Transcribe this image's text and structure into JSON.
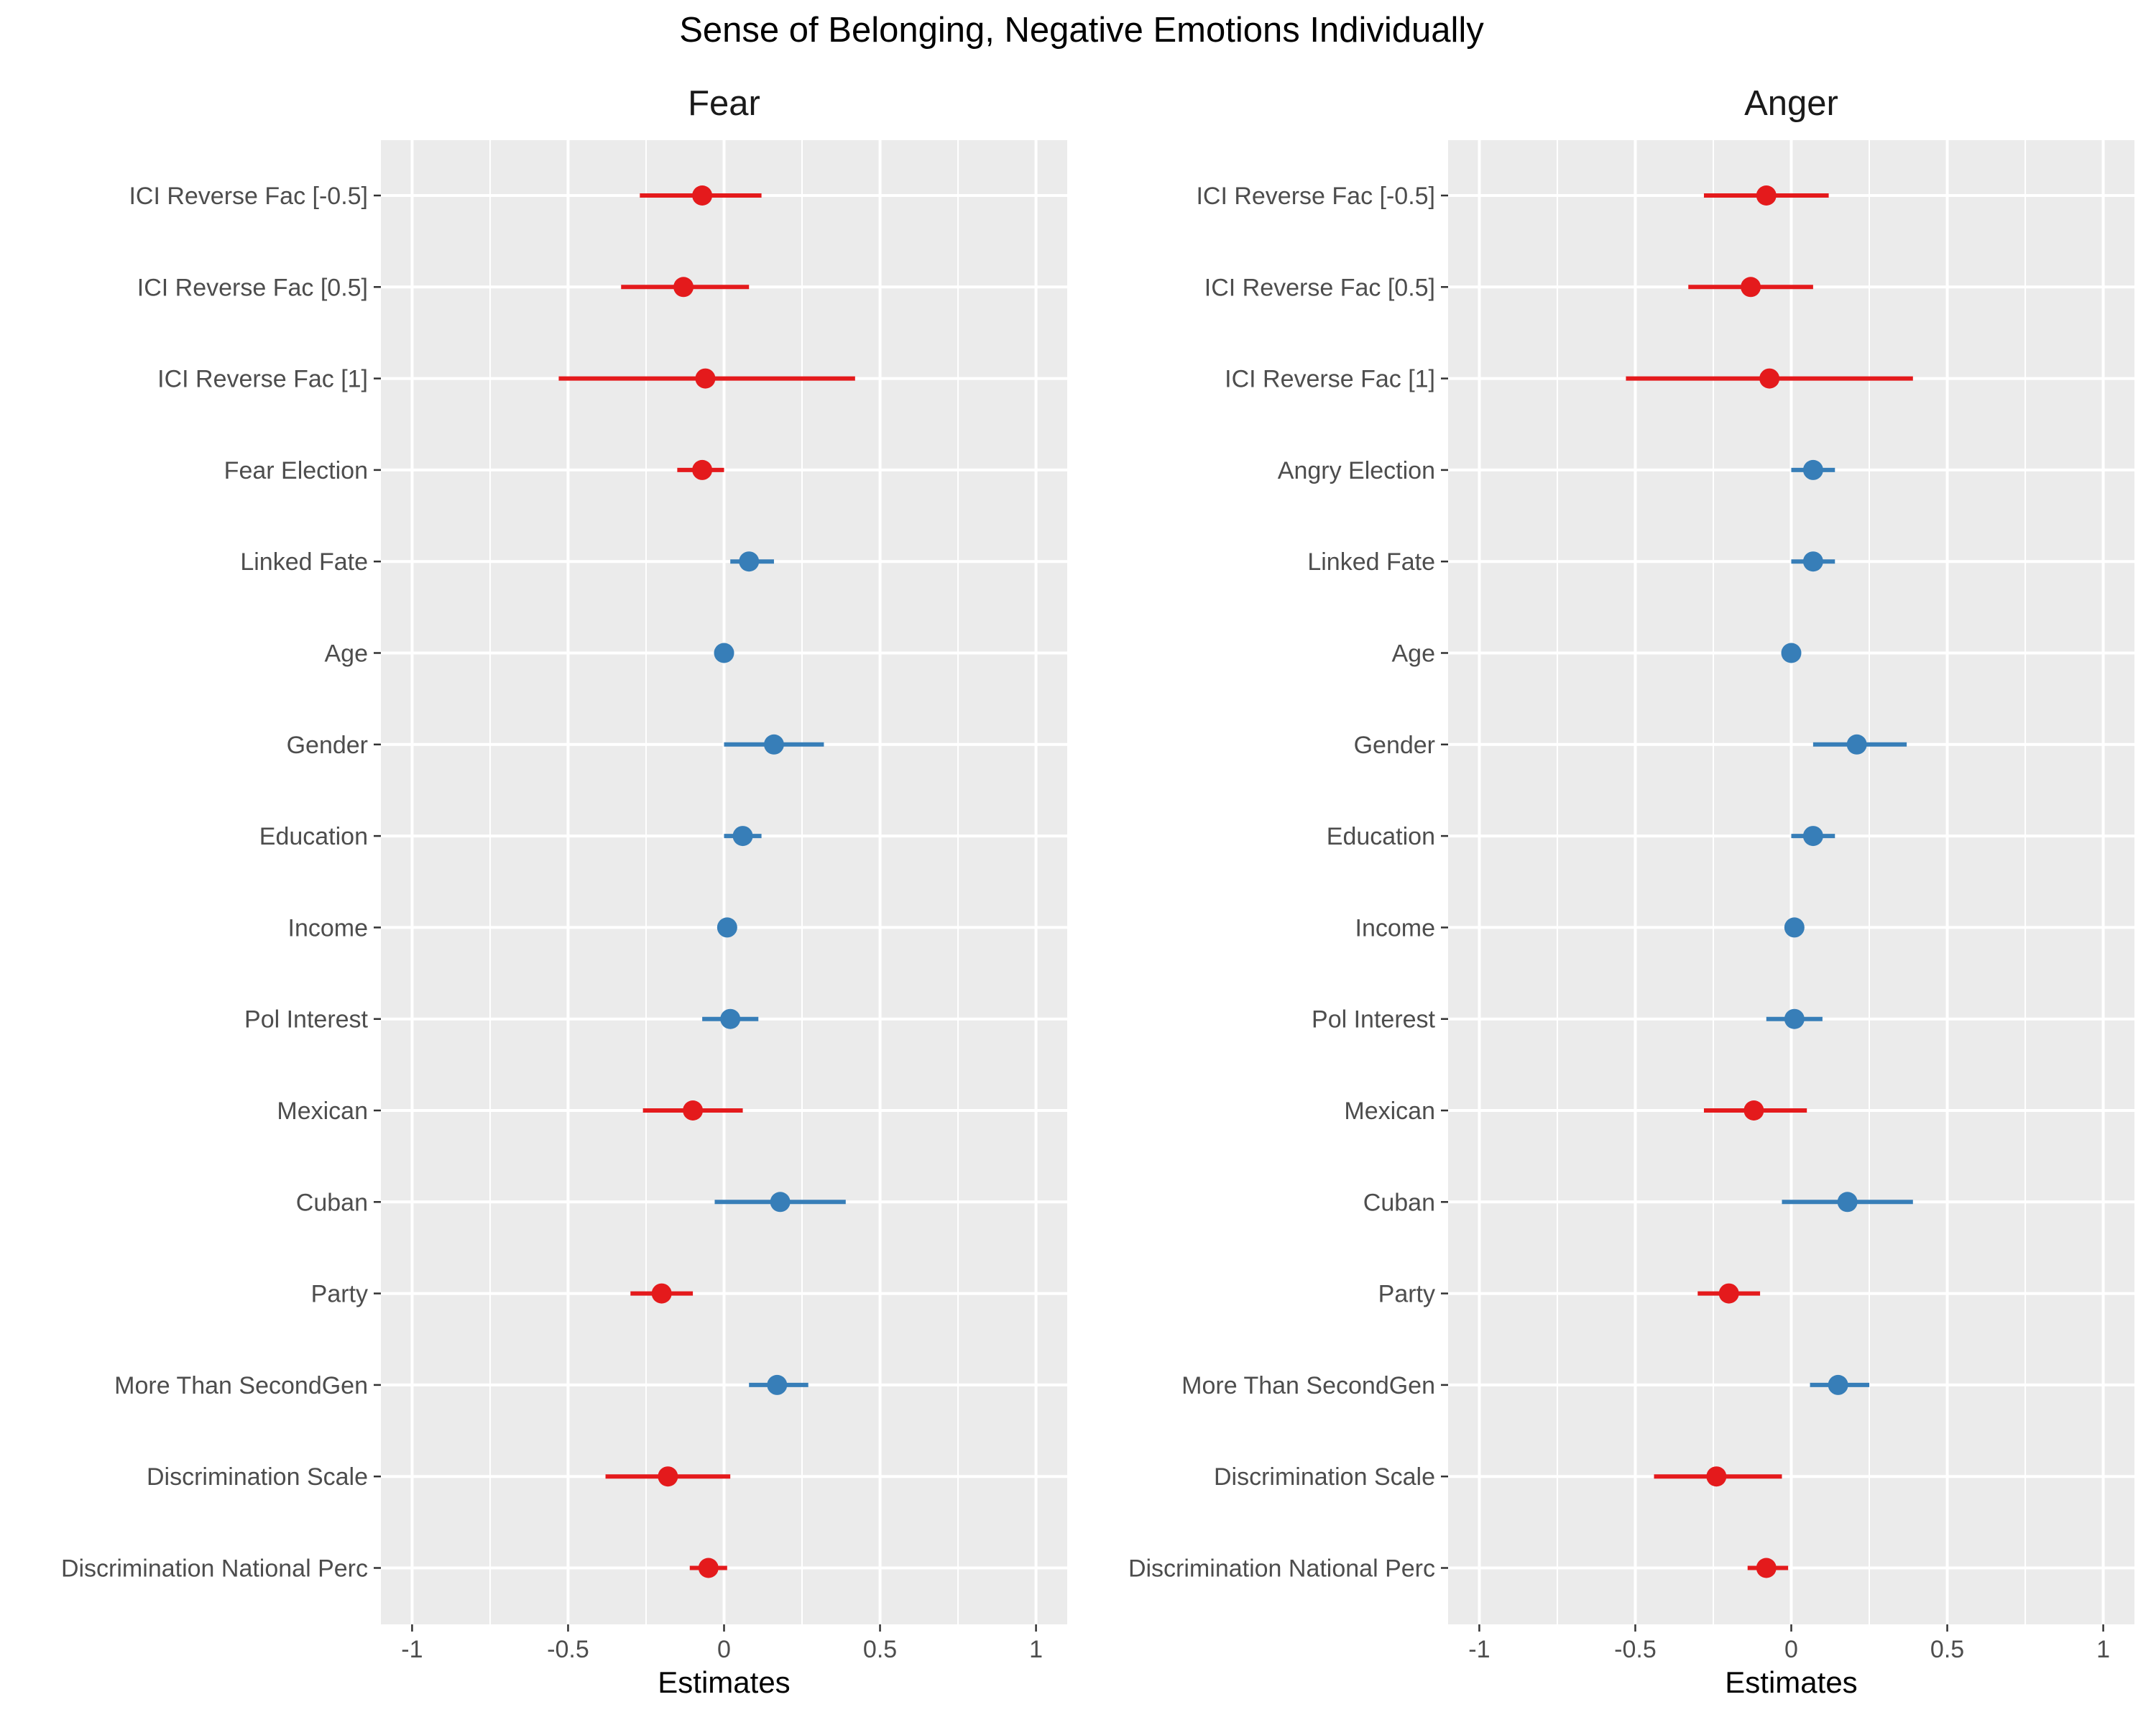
{
  "title": "Sense of Belonging, Negative Emotions Individually",
  "colors": {
    "negative": "#e41a1c",
    "positive": "#377eb8",
    "panel_bg": "#ebebeb",
    "grid": "#ffffff",
    "tick_text": "#4d4d4d"
  },
  "chart_data": [
    {
      "type": "forest",
      "title": "Fear",
      "xlabel": "Estimates",
      "xlim": [
        -1.1,
        1.1
      ],
      "xticks": [
        -1,
        -0.5,
        0,
        0.5,
        1
      ],
      "xtick_labels": [
        "-1",
        "-0.5",
        "0",
        "0.5",
        "1"
      ],
      "grid": true,
      "terms": [
        {
          "label": "ICI Reverse Fac [-0.5]",
          "estimate": -0.07,
          "low": -0.27,
          "high": 0.12,
          "sign": "negative"
        },
        {
          "label": "ICI Reverse Fac [0.5]",
          "estimate": -0.13,
          "low": -0.33,
          "high": 0.08,
          "sign": "negative"
        },
        {
          "label": "ICI Reverse Fac [1]",
          "estimate": -0.06,
          "low": -0.53,
          "high": 0.42,
          "sign": "negative"
        },
        {
          "label": "Fear Election",
          "estimate": -0.07,
          "low": -0.15,
          "high": 0.0,
          "sign": "negative"
        },
        {
          "label": "Linked Fate",
          "estimate": 0.08,
          "low": 0.02,
          "high": 0.16,
          "sign": "positive"
        },
        {
          "label": "Age",
          "estimate": 0.0,
          "low": 0.0,
          "high": 0.0,
          "sign": "positive"
        },
        {
          "label": "Gender",
          "estimate": 0.16,
          "low": 0.0,
          "high": 0.32,
          "sign": "positive"
        },
        {
          "label": "Education",
          "estimate": 0.06,
          "low": 0.0,
          "high": 0.12,
          "sign": "positive"
        },
        {
          "label": "Income",
          "estimate": 0.01,
          "low": 0.0,
          "high": 0.02,
          "sign": "positive"
        },
        {
          "label": "Pol Interest",
          "estimate": 0.02,
          "low": -0.07,
          "high": 0.11,
          "sign": "positive"
        },
        {
          "label": "Mexican",
          "estimate": -0.1,
          "low": -0.26,
          "high": 0.06,
          "sign": "negative"
        },
        {
          "label": "Cuban",
          "estimate": 0.18,
          "low": -0.03,
          "high": 0.39,
          "sign": "positive"
        },
        {
          "label": "Party",
          "estimate": -0.2,
          "low": -0.3,
          "high": -0.1,
          "sign": "negative"
        },
        {
          "label": "More Than SecondGen",
          "estimate": 0.17,
          "low": 0.08,
          "high": 0.27,
          "sign": "positive"
        },
        {
          "label": "Discrimination Scale",
          "estimate": -0.18,
          "low": -0.38,
          "high": 0.02,
          "sign": "negative"
        },
        {
          "label": "Discrimination National Perc",
          "estimate": -0.05,
          "low": -0.11,
          "high": 0.01,
          "sign": "negative"
        }
      ]
    },
    {
      "type": "forest",
      "title": "Anger",
      "xlabel": "Estimates",
      "xlim": [
        -1.1,
        1.1
      ],
      "xticks": [
        -1,
        -0.5,
        0,
        0.5,
        1
      ],
      "xtick_labels": [
        "-1",
        "-0.5",
        "0",
        "0.5",
        "1"
      ],
      "grid": true,
      "terms": [
        {
          "label": "ICI Reverse Fac [-0.5]",
          "estimate": -0.08,
          "low": -0.28,
          "high": 0.12,
          "sign": "negative"
        },
        {
          "label": "ICI Reverse Fac [0.5]",
          "estimate": -0.13,
          "low": -0.33,
          "high": 0.07,
          "sign": "negative"
        },
        {
          "label": "ICI Reverse Fac [1]",
          "estimate": -0.07,
          "low": -0.53,
          "high": 0.39,
          "sign": "negative"
        },
        {
          "label": "Angry Election",
          "estimate": 0.07,
          "low": 0.0,
          "high": 0.14,
          "sign": "positive"
        },
        {
          "label": "Linked Fate",
          "estimate": 0.07,
          "low": 0.0,
          "high": 0.14,
          "sign": "positive"
        },
        {
          "label": "Age",
          "estimate": 0.0,
          "low": 0.0,
          "high": 0.0,
          "sign": "positive"
        },
        {
          "label": "Gender",
          "estimate": 0.21,
          "low": 0.07,
          "high": 0.37,
          "sign": "positive"
        },
        {
          "label": "Education",
          "estimate": 0.07,
          "low": 0.0,
          "high": 0.14,
          "sign": "positive"
        },
        {
          "label": "Income",
          "estimate": 0.01,
          "low": 0.0,
          "high": 0.02,
          "sign": "positive"
        },
        {
          "label": "Pol Interest",
          "estimate": 0.01,
          "low": -0.08,
          "high": 0.1,
          "sign": "positive"
        },
        {
          "label": "Mexican",
          "estimate": -0.12,
          "low": -0.28,
          "high": 0.05,
          "sign": "negative"
        },
        {
          "label": "Cuban",
          "estimate": 0.18,
          "low": -0.03,
          "high": 0.39,
          "sign": "positive"
        },
        {
          "label": "Party",
          "estimate": -0.2,
          "low": -0.3,
          "high": -0.1,
          "sign": "negative"
        },
        {
          "label": "More Than SecondGen",
          "estimate": 0.15,
          "low": 0.06,
          "high": 0.25,
          "sign": "positive"
        },
        {
          "label": "Discrimination Scale",
          "estimate": -0.24,
          "low": -0.44,
          "high": -0.03,
          "sign": "negative"
        },
        {
          "label": "Discrimination National Perc",
          "estimate": -0.08,
          "low": -0.14,
          "high": -0.01,
          "sign": "negative"
        }
      ]
    }
  ]
}
